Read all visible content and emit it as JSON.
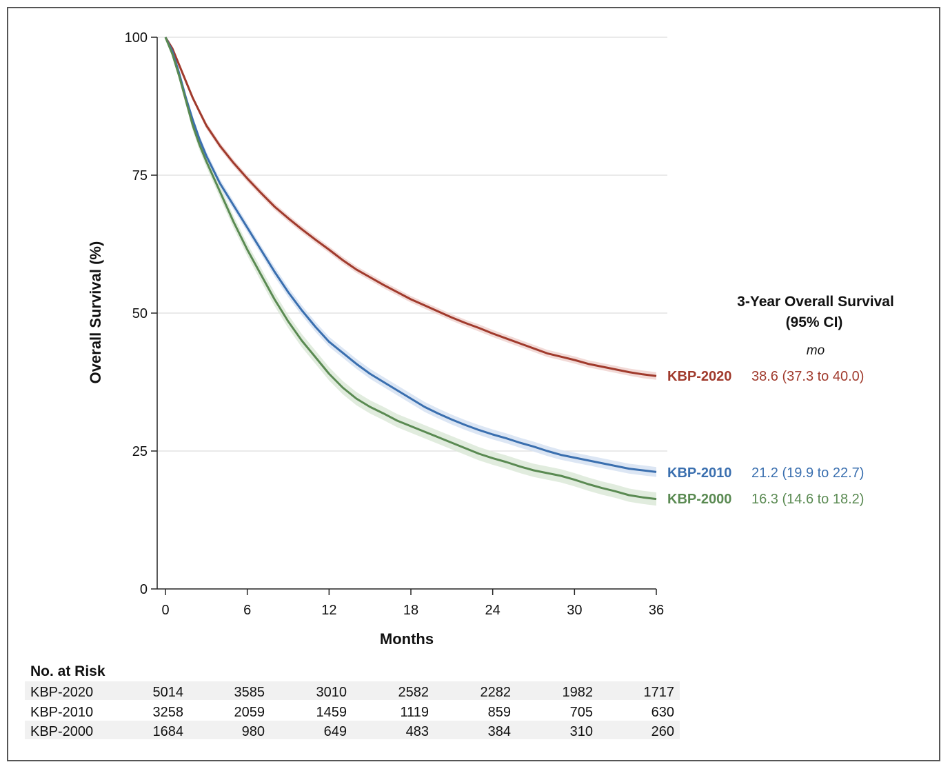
{
  "chart_data": {
    "type": "line",
    "title": "",
    "xlabel": "Months",
    "ylabel": "Overall Survival (%)",
    "xlim": [
      0,
      36
    ],
    "ylim": [
      0,
      100
    ],
    "xticks": [
      "0",
      "6",
      "12",
      "18",
      "24",
      "30",
      "36"
    ],
    "yticks": [
      "0",
      "25",
      "50",
      "75",
      "100"
    ],
    "grid": "horizontal",
    "x": [
      0,
      0.5,
      1,
      1.5,
      2,
      2.5,
      3,
      4,
      5,
      6,
      7,
      8,
      9,
      10,
      11,
      12,
      13,
      14,
      15,
      16,
      17,
      18,
      19,
      20,
      21,
      22,
      23,
      24,
      25,
      26,
      27,
      28,
      29,
      30,
      31,
      32,
      33,
      34,
      35,
      36
    ],
    "series": [
      {
        "name": "KBP-2020",
        "color": "#a03a2c",
        "band_color": "#f0d4d0",
        "values": [
          100,
          98,
          95,
          92,
          89,
          86.5,
          84,
          80.3,
          77.2,
          74.4,
          71.8,
          69.3,
          67.2,
          65.2,
          63.3,
          61.5,
          59.6,
          57.9,
          56.5,
          55.1,
          53.8,
          52.5,
          51.4,
          50.3,
          49.2,
          48.2,
          47.3,
          46.3,
          45.4,
          44.5,
          43.6,
          42.7,
          42.1,
          41.5,
          40.8,
          40.3,
          39.8,
          39.3,
          38.9,
          38.6
        ],
        "band_halfwidth": [
          0,
          0.3,
          0.4,
          0.5,
          0.5,
          0.5,
          0.6,
          0.6,
          0.6,
          0.6,
          0.6,
          0.6,
          0.6,
          0.6,
          0.6,
          0.6,
          0.6,
          0.6,
          0.6,
          0.6,
          0.6,
          0.6,
          0.6,
          0.6,
          0.6,
          0.6,
          0.65,
          0.65,
          0.65,
          0.65,
          0.65,
          0.65,
          0.65,
          0.65,
          0.65,
          0.65,
          0.65,
          0.65,
          0.7,
          0.7
        ]
      },
      {
        "name": "KBP-2010",
        "color": "#3a6faf",
        "band_color": "#d6e2f2",
        "values": [
          100,
          97.5,
          93.5,
          89,
          85,
          81.5,
          78.5,
          73.5,
          69.5,
          65.5,
          61.5,
          57.5,
          53.8,
          50.5,
          47.5,
          44.8,
          42.8,
          40.8,
          39,
          37.5,
          36,
          34.5,
          33,
          31.8,
          30.7,
          29.7,
          28.8,
          28,
          27.3,
          26.5,
          25.8,
          25,
          24.3,
          23.8,
          23.3,
          22.8,
          22.3,
          21.8,
          21.5,
          21.2
        ],
        "band_halfwidth": [
          0,
          0.3,
          0.5,
          0.6,
          0.7,
          0.7,
          0.8,
          0.8,
          0.8,
          0.8,
          0.8,
          0.9,
          0.9,
          0.9,
          0.9,
          0.9,
          0.9,
          0.9,
          0.9,
          0.9,
          0.9,
          0.9,
          0.9,
          0.9,
          0.9,
          0.9,
          0.9,
          0.9,
          0.9,
          0.9,
          0.9,
          0.9,
          0.9,
          0.9,
          0.9,
          0.9,
          0.9,
          0.9,
          0.9,
          0.9
        ]
      },
      {
        "name": "KBP-2000",
        "color": "#5a8a52",
        "band_color": "#dce9d8",
        "values": [
          100,
          97,
          93,
          88.5,
          84,
          80.5,
          77.5,
          72,
          66.5,
          61.5,
          57,
          52.5,
          48.5,
          45,
          42,
          39,
          36.5,
          34.5,
          33,
          31.8,
          30.5,
          29.5,
          28.5,
          27.5,
          26.5,
          25.5,
          24.5,
          23.7,
          23,
          22.2,
          21.5,
          21,
          20.5,
          19.8,
          19,
          18.3,
          17.7,
          17,
          16.6,
          16.3
        ],
        "band_halfwidth": [
          0,
          0.4,
          0.6,
          0.8,
          0.9,
          1.0,
          1.0,
          1.1,
          1.1,
          1.1,
          1.2,
          1.2,
          1.2,
          1.2,
          1.2,
          1.2,
          1.2,
          1.2,
          1.2,
          1.2,
          1.2,
          1.2,
          1.2,
          1.2,
          1.2,
          1.2,
          1.2,
          1.2,
          1.2,
          1.2,
          1.2,
          1.2,
          1.2,
          1.2,
          1.2,
          1.2,
          1.2,
          1.2,
          1.2,
          1.2
        ]
      }
    ],
    "legend": {
      "title_line1": "3-Year Overall Survival",
      "title_line2": "(95% CI)",
      "units": "mo",
      "placement": "right",
      "entries": [
        {
          "name": "KBP-2020",
          "value": "38.6 (37.3 to 40.0)",
          "color": "#a03a2c"
        },
        {
          "name": "KBP-2010",
          "value": "21.2 (19.9 to 22.7)",
          "color": "#3a6faf"
        },
        {
          "name": "KBP-2000",
          "value": "16.3 (14.6 to 18.2)",
          "color": "#5a8a52"
        }
      ]
    },
    "risk_table": {
      "title": "No. at Risk",
      "columns": [
        "0",
        "6",
        "12",
        "18",
        "24",
        "30",
        "36"
      ],
      "rows": [
        {
          "name": "KBP-2020",
          "values": [
            "5014",
            "3585",
            "3010",
            "2582",
            "2282",
            "1982",
            "1717"
          ]
        },
        {
          "name": "KBP-2010",
          "values": [
            "3258",
            "2059",
            "1459",
            "1119",
            "859",
            "705",
            "630"
          ]
        },
        {
          "name": "KBP-2000",
          "values": [
            "1684",
            "980",
            "649",
            "483",
            "384",
            "310",
            "260"
          ]
        }
      ]
    }
  }
}
